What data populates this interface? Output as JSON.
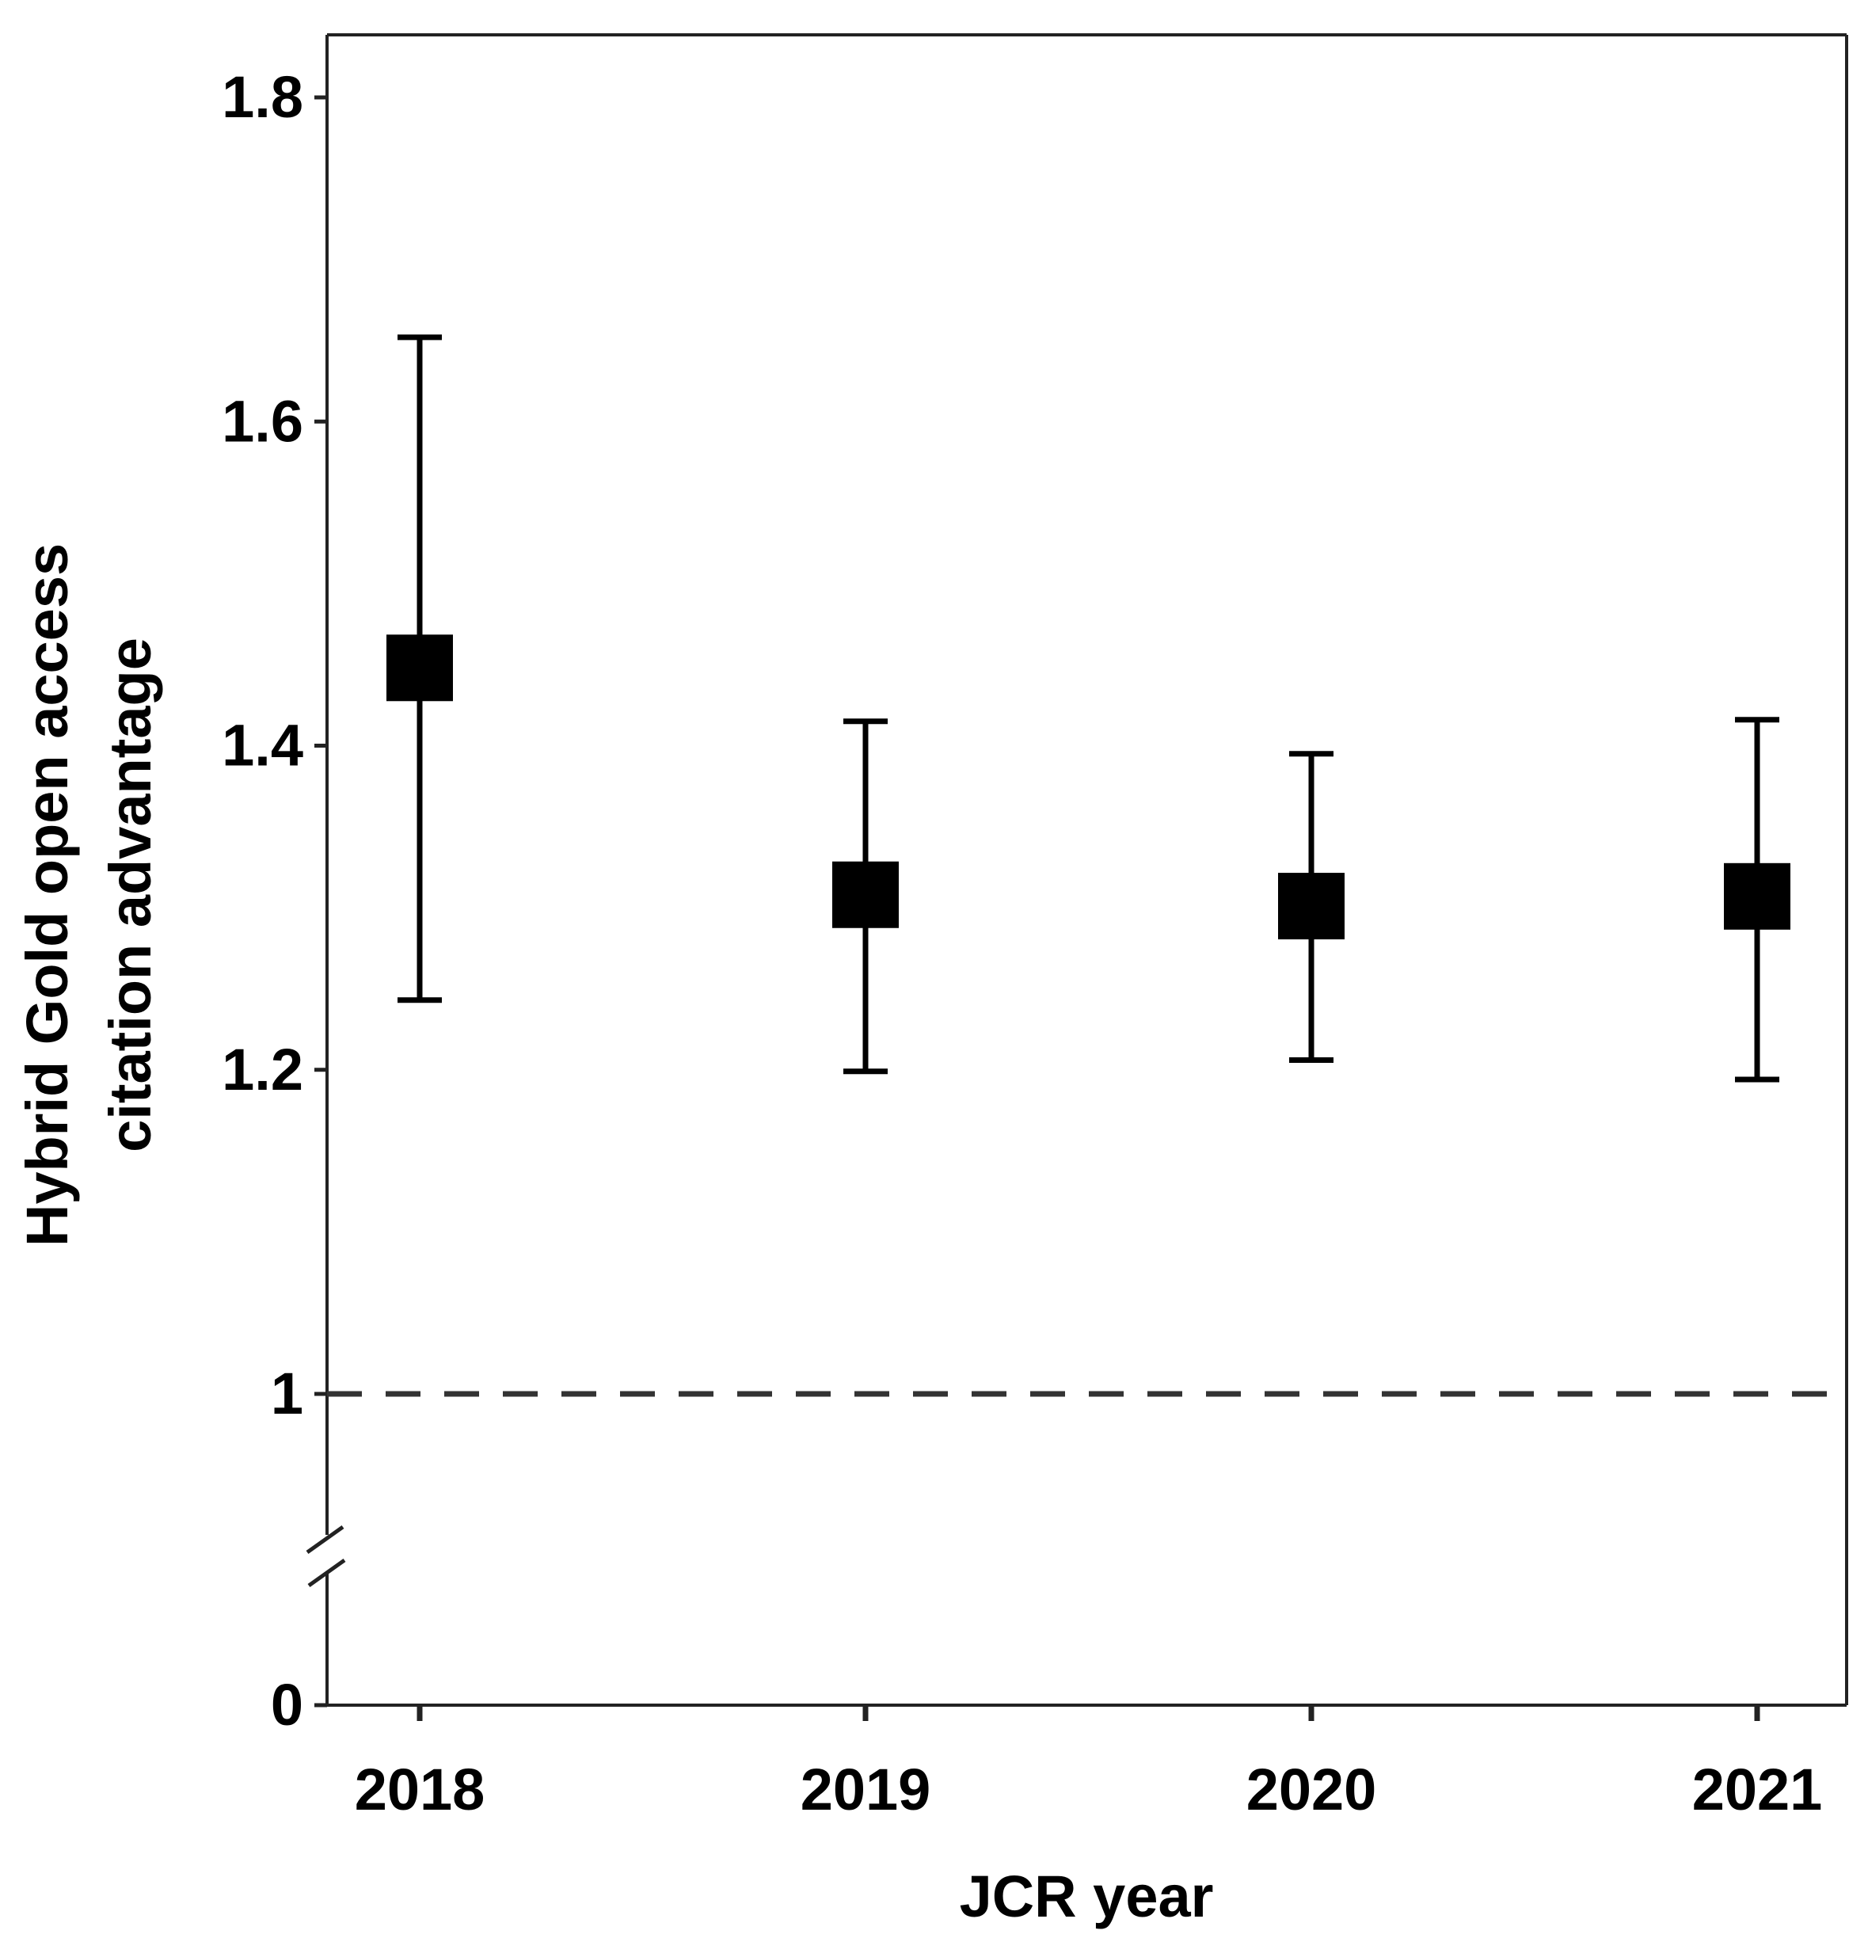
{
  "chart_data": {
    "type": "scatter",
    "title": "",
    "xlabel": "JCR year",
    "ylabel_lines": [
      "Hybrid Gold open access",
      "citation advantage"
    ],
    "categories": [
      "2018",
      "2019",
      "2020",
      "2021"
    ],
    "series": [
      {
        "values": [
          1.448,
          1.308,
          1.301,
          1.307
        ],
        "lower": [
          1.243,
          1.199,
          1.206,
          1.194
        ],
        "upper": [
          1.652,
          1.415,
          1.395,
          1.416
        ]
      }
    ],
    "yticks": [
      0,
      1,
      1.2,
      1.4,
      1.6,
      1.8
    ],
    "ytick_labels": [
      "0",
      "1",
      "1.2",
      "1.4",
      "1.6",
      "1.8"
    ],
    "ylim": [
      0.9,
      1.84
    ],
    "y_axis_break": true,
    "reference_line": {
      "y": 1,
      "style": "dashed",
      "color": "#333333"
    },
    "marker": "square",
    "marker_color": "#000000",
    "grid": false
  }
}
